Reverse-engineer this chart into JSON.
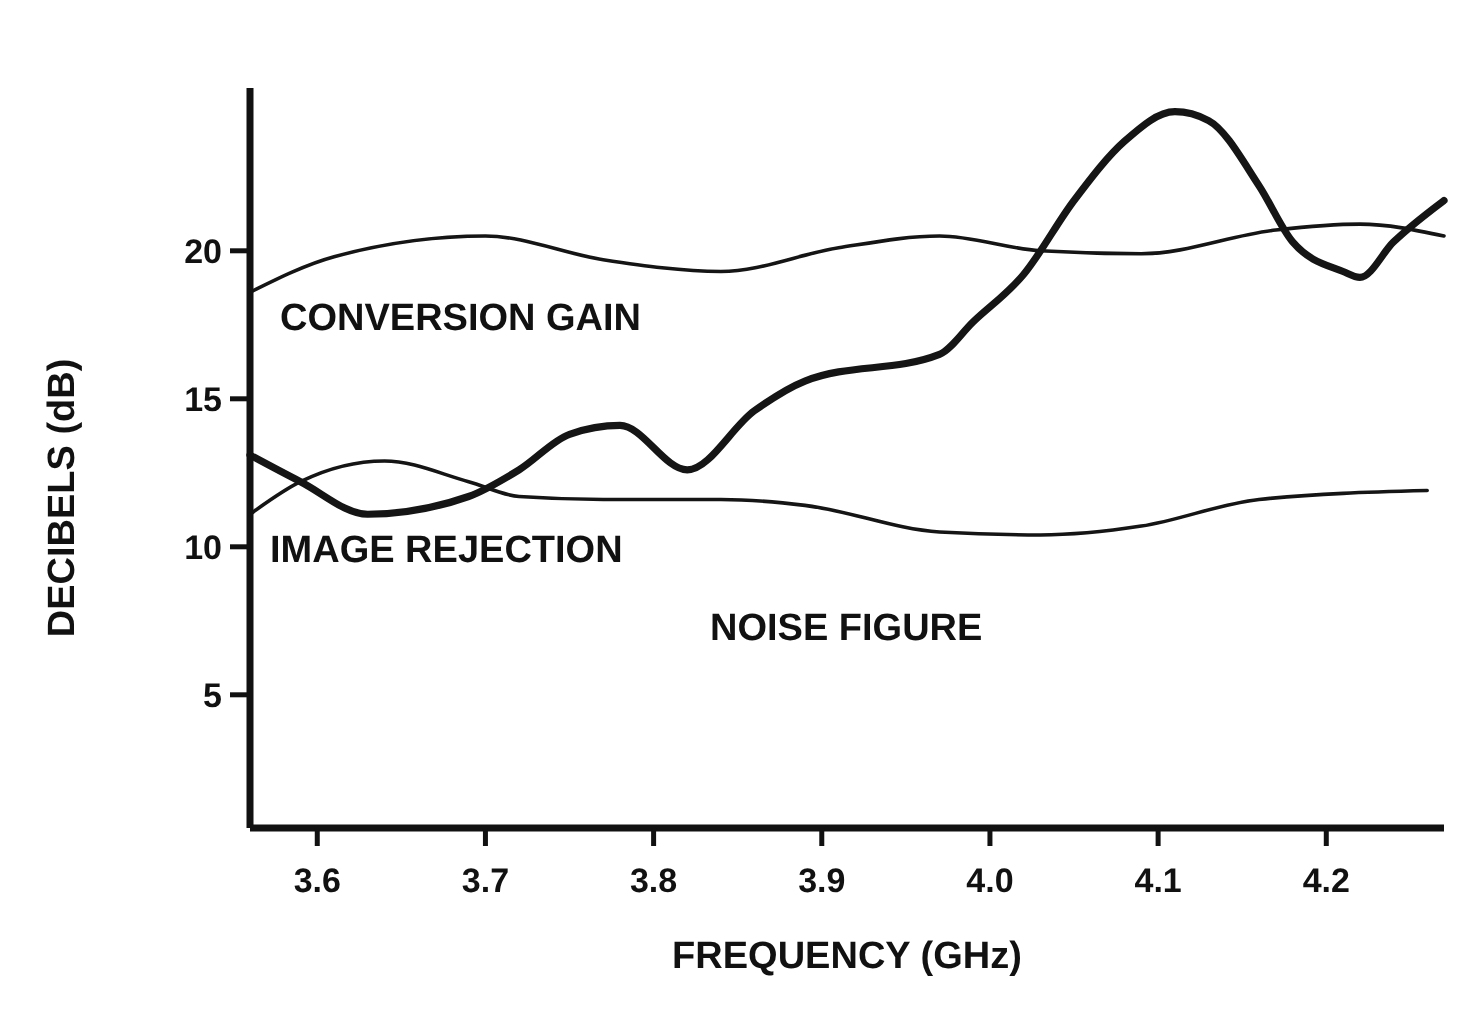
{
  "chart_data": {
    "type": "line",
    "xlabel": "FREQUENCY (GHz)",
    "ylabel": "DECIBELS (dB)",
    "xlim": [
      3.56,
      4.27
    ],
    "xticks": [
      {
        "value": 3.6,
        "label": "3.6"
      },
      {
        "value": 3.7,
        "label": "3.7"
      },
      {
        "value": 3.8,
        "label": "3.8"
      },
      {
        "value": 3.9,
        "label": "3.9"
      },
      {
        "value": 4.0,
        "label": "4.0"
      },
      {
        "value": 4.1,
        "label": "4.1"
      },
      {
        "value": 4.2,
        "label": "4.2"
      }
    ],
    "ylim": [
      0.5,
      25.5
    ],
    "yticks": [
      5,
      10,
      15,
      20
    ],
    "series": [
      {
        "color": "#151515",
        "x": [
          3.56,
          3.61,
          3.7,
          3.77,
          3.84,
          3.91,
          3.97,
          4.03,
          4.09,
          4.17,
          4.22,
          4.27
        ],
        "values": [
          18.6,
          19.8,
          20.5,
          19.7,
          19.3,
          20.1,
          20.5,
          20.0,
          19.9,
          20.7,
          20.9,
          20.5
        ]
      },
      {
        "color": "#151515",
        "x": [
          3.56,
          3.59,
          3.63,
          3.69,
          3.72,
          3.75,
          3.78,
          3.82,
          3.86,
          3.89,
          3.97,
          3.99,
          4.02,
          4.05,
          4.08,
          4.11,
          4.13,
          4.16,
          4.18,
          4.21,
          4.22,
          4.24,
          4.27
        ],
        "values": [
          13.1,
          12.2,
          11.1,
          11.7,
          12.6,
          13.8,
          14.1,
          12.6,
          14.6,
          15.6,
          16.5,
          17.6,
          19.2,
          21.7,
          23.7,
          24.7,
          24.4,
          22.2,
          20.3,
          19.3,
          19.1,
          20.3,
          21.7
        ]
      },
      {
        "color": "#151515",
        "x": [
          3.56,
          3.59,
          3.64,
          3.69,
          3.72,
          3.77,
          3.84,
          3.89,
          3.97,
          4.03,
          4.09,
          4.16,
          4.26
        ],
        "values": [
          11.1,
          12.2,
          12.9,
          12.2,
          11.7,
          11.6,
          11.6,
          11.4,
          10.5,
          10.4,
          10.7,
          11.6,
          11.9
        ]
      }
    ],
    "annotations": [
      "CONVERSION GAIN",
      "IMAGE REJECTION",
      "NOISE FIGURE"
    ]
  }
}
